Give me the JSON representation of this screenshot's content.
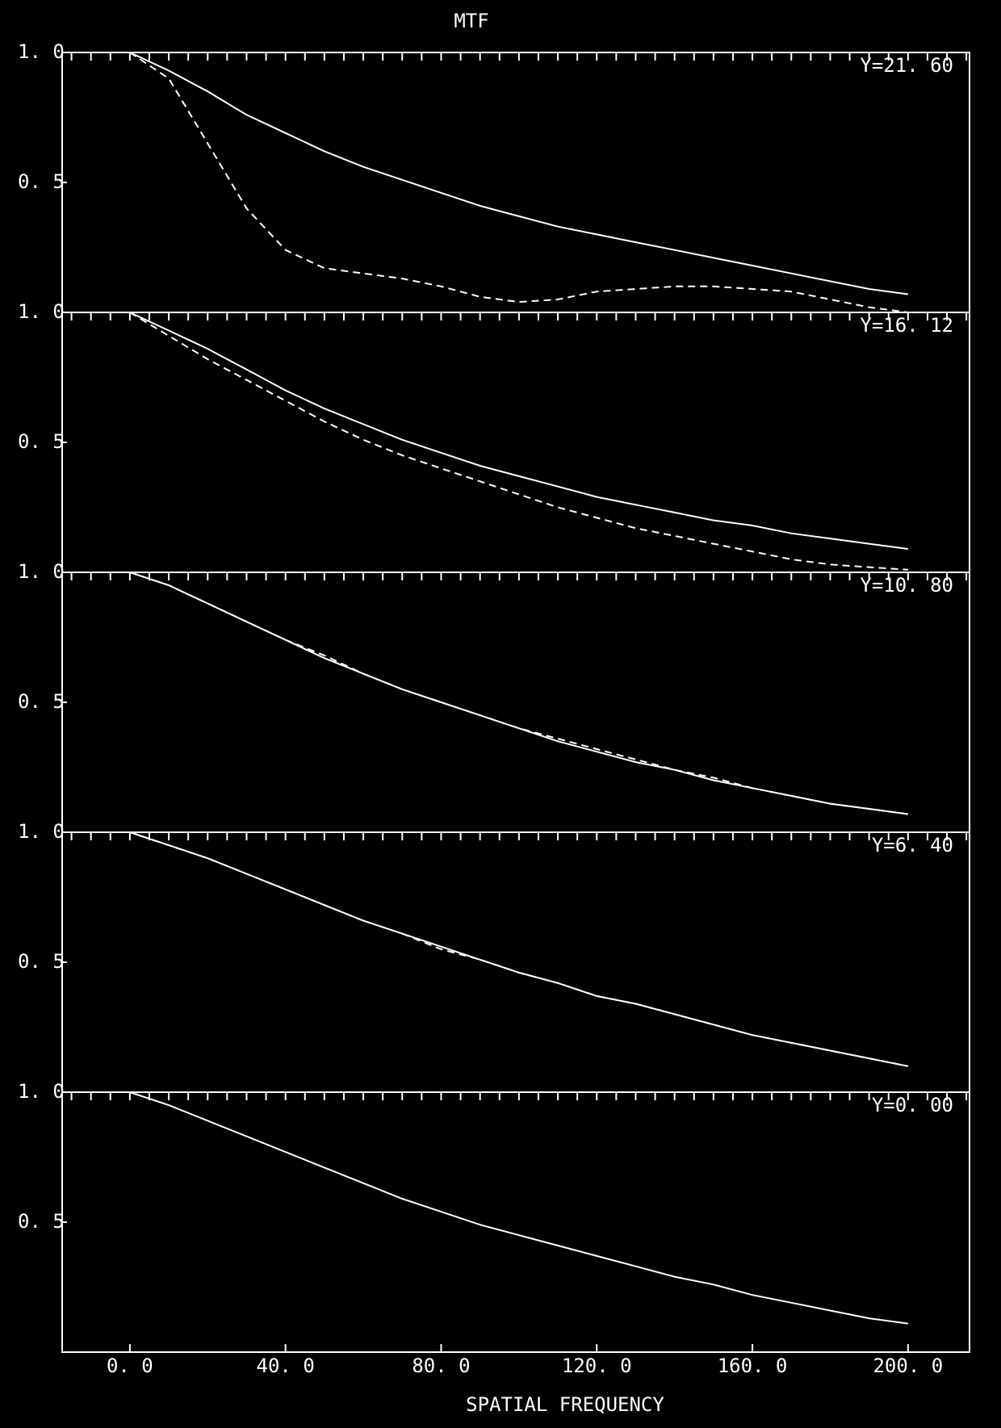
{
  "chart_data": [
    {
      "type": "line",
      "title": "MTF",
      "annotation": "Y=21. 60",
      "xlim": [
        -17.4,
        215.8
      ],
      "ylim": [
        0,
        1
      ],
      "yticks": [
        {
          "value": 1,
          "label": "1. 0"
        },
        {
          "value": 0.5,
          "label": "0. 5"
        }
      ],
      "minor_xticks": [
        -15,
        -10,
        -5,
        0,
        5,
        10,
        15,
        20,
        25,
        30,
        35,
        40,
        45,
        50,
        55,
        60,
        65,
        70,
        75,
        80,
        85,
        90,
        95,
        100,
        105,
        110,
        115,
        120,
        125,
        130,
        135,
        140,
        145,
        150,
        155,
        160,
        165,
        170,
        175,
        180,
        185,
        190,
        195,
        200,
        205,
        210,
        215
      ],
      "x": [
        0,
        10,
        20,
        30,
        40,
        50,
        60,
        70,
        80,
        90,
        100,
        110,
        120,
        130,
        140,
        150,
        160,
        170,
        180,
        190,
        200
      ],
      "series": [
        {
          "color": "#ffffff",
          "dash": false,
          "values": [
            1,
            0.93,
            0.85,
            0.76,
            0.69,
            0.62,
            0.56,
            0.51,
            0.46,
            0.41,
            0.37,
            0.33,
            0.3,
            0.27,
            0.24,
            0.21,
            0.18,
            0.15,
            0.12,
            0.09,
            0.07
          ]
        },
        {
          "color": "#ffffff",
          "dash": true,
          "values": [
            1,
            0.9,
            0.65,
            0.4,
            0.24,
            0.17,
            0.15,
            0.13,
            0.1,
            0.06,
            0.04,
            0.05,
            0.08,
            0.09,
            0.1,
            0.1,
            0.09,
            0.08,
            0.05,
            0.02,
            0
          ]
        }
      ]
    },
    {
      "type": "line",
      "annotation": "Y=16. 12",
      "xlim": [
        -17.4,
        215.8
      ],
      "ylim": [
        0,
        1
      ],
      "yticks": [
        {
          "value": 1,
          "label": "1. 0"
        },
        {
          "value": 0.5,
          "label": "0. 5"
        }
      ],
      "x": [
        0,
        10,
        20,
        30,
        40,
        50,
        60,
        70,
        80,
        90,
        100,
        110,
        120,
        130,
        140,
        150,
        160,
        170,
        180,
        190,
        200
      ],
      "series": [
        {
          "color": "#ffffff",
          "dash": false,
          "values": [
            1,
            0.93,
            0.86,
            0.78,
            0.7,
            0.63,
            0.57,
            0.51,
            0.46,
            0.41,
            0.37,
            0.33,
            0.29,
            0.26,
            0.23,
            0.2,
            0.18,
            0.15,
            0.13,
            0.11,
            0.09
          ]
        },
        {
          "color": "#ffffff",
          "dash": true,
          "values": [
            1,
            0.91,
            0.82,
            0.74,
            0.66,
            0.58,
            0.51,
            0.45,
            0.4,
            0.35,
            0.3,
            0.25,
            0.21,
            0.17,
            0.14,
            0.11,
            0.08,
            0.05,
            0.03,
            0.02,
            0.01
          ]
        }
      ]
    },
    {
      "type": "line",
      "annotation": "Y=10. 80",
      "xlim": [
        -17.4,
        215.8
      ],
      "ylim": [
        0,
        1
      ],
      "yticks": [
        {
          "value": 1,
          "label": "1. 0"
        },
        {
          "value": 0.5,
          "label": "0. 5"
        }
      ],
      "x": [
        0,
        10,
        20,
        30,
        40,
        50,
        60,
        70,
        80,
        90,
        100,
        110,
        120,
        130,
        140,
        150,
        160,
        170,
        180,
        190,
        200
      ],
      "series": [
        {
          "color": "#ffffff",
          "dash": false,
          "values": [
            1,
            0.95,
            0.88,
            0.81,
            0.74,
            0.67,
            0.61,
            0.55,
            0.5,
            0.45,
            0.4,
            0.35,
            0.31,
            0.27,
            0.24,
            0.2,
            0.17,
            0.14,
            0.11,
            0.09,
            0.07
          ]
        },
        {
          "color": "#ffffff",
          "dash": true,
          "values": [
            1,
            0.95,
            0.88,
            0.81,
            0.74,
            0.68,
            0.61,
            0.55,
            0.5,
            0.45,
            0.4,
            0.36,
            0.32,
            0.28,
            0.24,
            0.21,
            0.17,
            0.14,
            0.11,
            0.09,
            0.07
          ]
        }
      ]
    },
    {
      "type": "line",
      "annotation": "Y=6. 40",
      "xlim": [
        -17.4,
        215.8
      ],
      "ylim": [
        0,
        1
      ],
      "yticks": [
        {
          "value": 1,
          "label": "1. 0"
        },
        {
          "value": 0.5,
          "label": "0. 5"
        }
      ],
      "x": [
        0,
        10,
        20,
        30,
        40,
        50,
        60,
        70,
        80,
        90,
        100,
        110,
        120,
        130,
        140,
        150,
        160,
        170,
        180,
        190,
        200
      ],
      "series": [
        {
          "color": "#ffffff",
          "dash": false,
          "values": [
            1,
            0.95,
            0.9,
            0.84,
            0.78,
            0.72,
            0.66,
            0.61,
            0.56,
            0.51,
            0.46,
            0.42,
            0.37,
            0.34,
            0.3,
            0.26,
            0.22,
            0.19,
            0.16,
            0.13,
            0.1
          ]
        },
        {
          "color": "#ffffff",
          "dash": true,
          "values": [
            1,
            0.95,
            0.9,
            0.84,
            0.78,
            0.72,
            0.66,
            0.61,
            0.55,
            0.51,
            0.46,
            0.42,
            0.37,
            0.34,
            0.3,
            0.26,
            0.22,
            0.19,
            0.16,
            0.13,
            0.1
          ]
        }
      ]
    },
    {
      "type": "line",
      "annotation": "Y=0. 00",
      "xlabel": "SPATIAL FREQUENCY",
      "xlim": [
        -17.4,
        215.8
      ],
      "ylim": [
        0,
        1
      ],
      "yticks": [
        {
          "value": 1,
          "label": "1. 0"
        },
        {
          "value": 0.5,
          "label": "0. 5"
        }
      ],
      "xticks": [
        {
          "value": 0,
          "label": "0. 0"
        },
        {
          "value": 40,
          "label": "40. 0"
        },
        {
          "value": 80,
          "label": "80. 0"
        },
        {
          "value": 120,
          "label": "120. 0"
        },
        {
          "value": 160,
          "label": "160. 0"
        },
        {
          "value": 200,
          "label": "200. 0"
        }
      ],
      "x": [
        0,
        10,
        20,
        30,
        40,
        50,
        60,
        70,
        80,
        90,
        100,
        110,
        120,
        130,
        140,
        150,
        160,
        170,
        180,
        190,
        200
      ],
      "series": [
        {
          "color": "#ffffff",
          "dash": false,
          "values": [
            1,
            0.95,
            0.89,
            0.83,
            0.77,
            0.71,
            0.65,
            0.59,
            0.54,
            0.49,
            0.45,
            0.41,
            0.37,
            0.33,
            0.29,
            0.26,
            0.22,
            0.19,
            0.16,
            0.13,
            0.11
          ]
        }
      ]
    }
  ]
}
